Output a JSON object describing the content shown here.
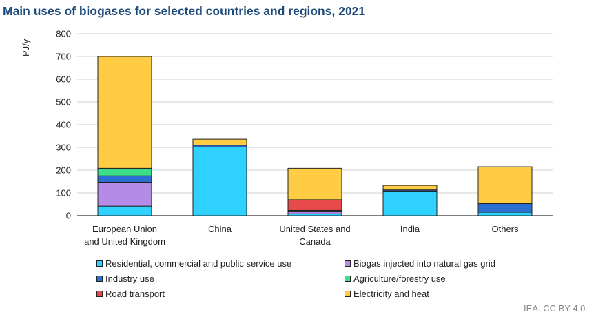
{
  "title": "Main uses of biogases for selected countries and regions, 2021",
  "credit": "IEA. CC BY 4.0.",
  "chart_data": {
    "type": "bar",
    "stacked": true,
    "ylabel": "PJ/y",
    "ylim": [
      0,
      800
    ],
    "yticks": [
      0,
      100,
      200,
      300,
      400,
      500,
      600,
      700,
      800
    ],
    "categories": [
      [
        "European Union",
        "and United Kingdom"
      ],
      [
        "China"
      ],
      [
        "United States and",
        "Canada"
      ],
      [
        "India"
      ],
      [
        "Others"
      ]
    ],
    "series": [
      {
        "name": "Residential, commercial and public service use",
        "color": "#2ed1ff",
        "values": [
          42,
          302,
          8,
          108,
          15
        ]
      },
      {
        "name": "Biogas injected into natural gas grid",
        "color": "#b48ce8",
        "values": [
          105,
          0,
          12,
          0,
          0
        ]
      },
      {
        "name": "Industry use",
        "color": "#2a6fd1",
        "values": [
          28,
          8,
          3,
          5,
          38
        ]
      },
      {
        "name": "Agriculture/forestry use",
        "color": "#3dde8a",
        "values": [
          33,
          0,
          0,
          0,
          0
        ]
      },
      {
        "name": "Road transport",
        "color": "#e84a4a",
        "values": [
          0,
          0,
          47,
          0,
          0
        ]
      },
      {
        "name": "Electricity and heat",
        "color": "#ffcc44",
        "values": [
          492,
          26,
          138,
          20,
          162
        ]
      }
    ]
  }
}
